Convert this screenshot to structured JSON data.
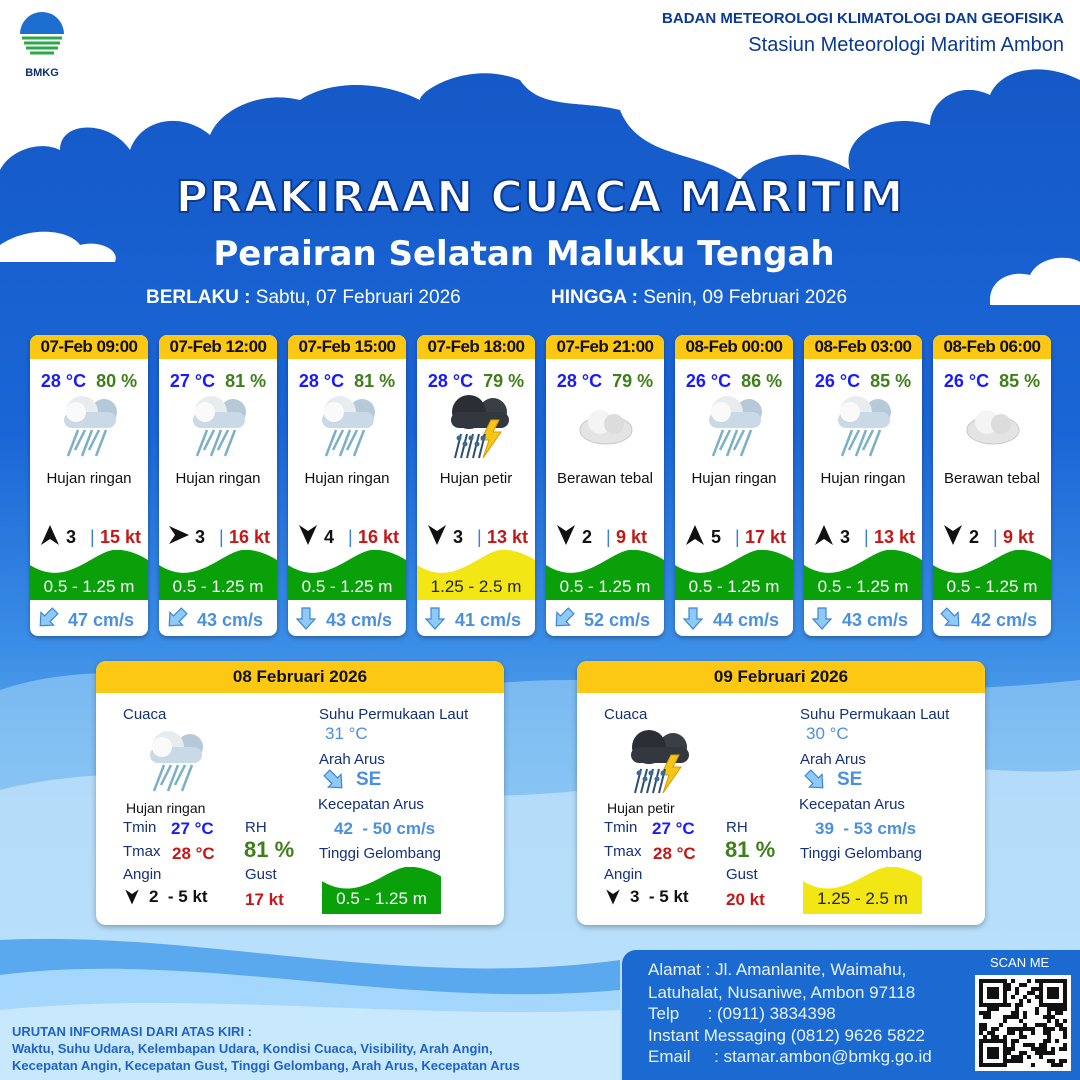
{
  "header": {
    "logo_text": "BMKG",
    "org_name": "BADAN METEOROLOGI KLIMATOLOGI DAN GEOFISIKA",
    "station": "Stasiun Meteorologi Maritim Ambon",
    "title": "PRAKIRAAN CUACA MARITIM",
    "subtitle": "Perairan Selatan Maluku Tengah",
    "valid_from_label": "BERLAKU :",
    "valid_from": "Sabtu, 07 Februari 2026",
    "valid_to_label": "HINGGA :",
    "valid_to": "Senin, 09 Februari 2026"
  },
  "colors": {
    "header_yellow": "#fcc814",
    "wave_green": "#0aa00a",
    "wave_yellow": "#f2e614",
    "temp": "#1a1aff",
    "rh": "#3f7f1a",
    "gust": "#c41818",
    "current": "#4a90e2"
  },
  "forecasts": [
    {
      "time": "07-Feb 09:00",
      "temp": "28 °C",
      "rh": "80 %",
      "icon": "light-rain",
      "condition": "Hujan ringan",
      "wind_dir": "N",
      "wind_speed": "3",
      "gust": "15 kt",
      "wave": "0.5 - 1.25 m",
      "wave_class": "green",
      "current_dir": "SW",
      "current_speed": "47 cm/s"
    },
    {
      "time": "07-Feb 12:00",
      "temp": "27 °C",
      "rh": "81 %",
      "icon": "light-rain",
      "condition": "Hujan ringan",
      "wind_dir": "E",
      "wind_speed": "3",
      "gust": "16 kt",
      "wave": "0.5 - 1.25 m",
      "wave_class": "green",
      "current_dir": "SW",
      "current_speed": "43 cm/s"
    },
    {
      "time": "07-Feb 15:00",
      "temp": "28 °C",
      "rh": "81 %",
      "icon": "light-rain",
      "condition": "Hujan ringan",
      "wind_dir": "S",
      "wind_speed": "4",
      "gust": "16 kt",
      "wave": "0.5 - 1.25 m",
      "wave_class": "green",
      "current_dir": "S",
      "current_speed": "43 cm/s"
    },
    {
      "time": "07-Feb 18:00",
      "temp": "28 °C",
      "rh": "79 %",
      "icon": "thunderstorm",
      "condition": "Hujan petir",
      "wind_dir": "S",
      "wind_speed": "3",
      "gust": "13 kt",
      "wave": "1.25 - 2.5 m",
      "wave_class": "yellow",
      "current_dir": "S",
      "current_speed": "41 cm/s"
    },
    {
      "time": "07-Feb 21:00",
      "temp": "28 °C",
      "rh": "79 %",
      "icon": "overcast",
      "condition": "Berawan tebal",
      "wind_dir": "S",
      "wind_speed": "2",
      "gust": "9 kt",
      "wave": "0.5 - 1.25 m",
      "wave_class": "green",
      "current_dir": "SW",
      "current_speed": "52 cm/s"
    },
    {
      "time": "08-Feb 00:00",
      "temp": "26 °C",
      "rh": "86 %",
      "icon": "light-rain",
      "condition": "Hujan ringan",
      "wind_dir": "N",
      "wind_speed": "5",
      "gust": "17 kt",
      "wave": "0.5 - 1.25 m",
      "wave_class": "green",
      "current_dir": "S",
      "current_speed": "44 cm/s"
    },
    {
      "time": "08-Feb 03:00",
      "temp": "26 °C",
      "rh": "85 %",
      "icon": "light-rain",
      "condition": "Hujan ringan",
      "wind_dir": "N",
      "wind_speed": "3",
      "gust": "13 kt",
      "wave": "0.5 - 1.25 m",
      "wave_class": "green",
      "current_dir": "S",
      "current_speed": "43 cm/s"
    },
    {
      "time": "08-Feb 06:00",
      "temp": "26 °C",
      "rh": "85 %",
      "icon": "overcast",
      "condition": "Berawan tebal",
      "wind_dir": "S",
      "wind_speed": "2",
      "gust": "9 kt",
      "wave": "0.5 - 1.25 m",
      "wave_class": "green",
      "current_dir": "SE",
      "current_speed": "42 cm/s"
    }
  ],
  "labels": {
    "weather": "Cuaca",
    "sst": "Suhu Permukaan Laut",
    "current_dir": "Arah Arus",
    "current_speed": "Kecepatan Arus",
    "wave": "Tinggi Gelombang",
    "tmin": "Tmin",
    "tmax": "Tmax",
    "rh": "RH",
    "wind": "Angin",
    "gust": "Gust"
  },
  "daily": [
    {
      "date": "08 Februari 2026",
      "icon": "light-rain",
      "condition": "Hujan ringan",
      "tmin": "27 °C",
      "tmax": "28 °C",
      "rh": "81 %",
      "wind_dir": "S",
      "wind": "2  - 5 kt",
      "gust": "17 kt",
      "sst": "31 °C",
      "current_dir": "SE",
      "current_dir_text": "SE",
      "current_speed": "42  - 50 cm/s",
      "wave": "0.5 - 1.25 m",
      "wave_class": "green"
    },
    {
      "date": "09 Februari 2026",
      "icon": "thunderstorm",
      "condition": "Hujan petir",
      "tmin": "27 °C",
      "tmax": "28 °C",
      "rh": "81 %",
      "wind_dir": "S",
      "wind": "3  - 5 kt",
      "gust": "20 kt",
      "sst": "30 °C",
      "current_dir": "SE",
      "current_dir_text": "SE",
      "current_speed": "39  - 53 cm/s",
      "wave": "1.25 - 2.5 m",
      "wave_class": "yellow"
    }
  ],
  "footer": {
    "note_title": "URUTAN INFORMASI DARI ATAS KIRI :",
    "note_line1": "Waktu, Suhu Udara, Kelembapan Udara, Kondisi Cuaca, Visibility, Arah Angin,",
    "note_line2": "Kecepatan Angin, Kecepatan Gust, Tinggi Gelombang, Arah Arus, Kecepatan Arus",
    "address1": "Alamat : Jl. Amanlanite, Waimahu,",
    "address2": "Latuhalat, Nusaniwe, Ambon 97118",
    "phone": "Telp      : (0911) 3834398",
    "im": "Instant Messaging (0812) 9626 5822",
    "email": "Email     : stamar.ambon@bmkg.go.id",
    "scan_label": "SCAN ME"
  }
}
